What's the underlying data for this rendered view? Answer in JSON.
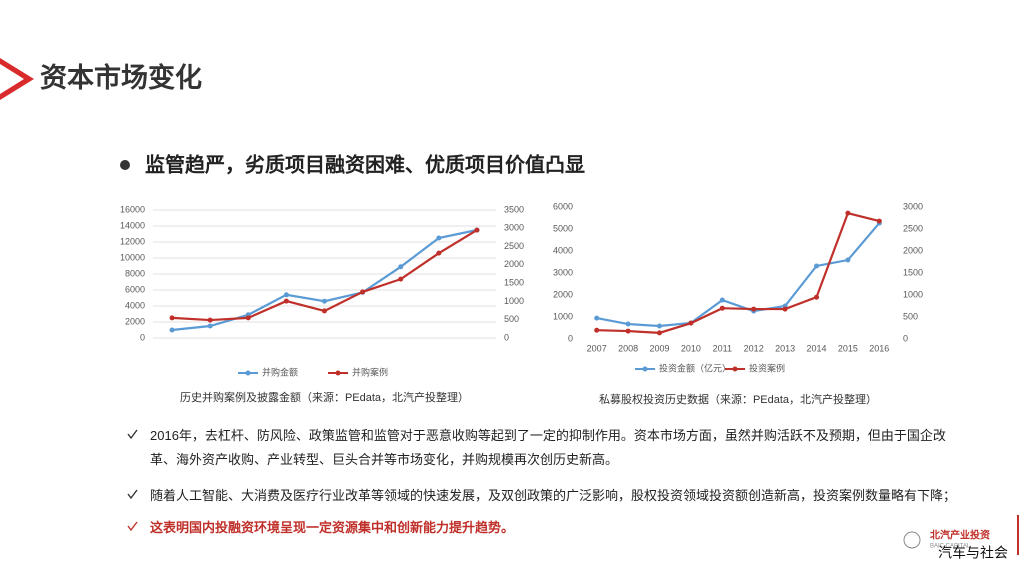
{
  "title": "资本市场变化",
  "heading": "监管趋严，劣质项目融资困难、优质项目价值凸显",
  "chart_data": [
    {
      "type": "line",
      "caption": "历史并购案例及披露金额（来源：PEdata，北汽产投整理）",
      "categories": [
        null,
        null,
        null,
        null,
        null,
        null,
        null,
        null,
        null
      ],
      "series": [
        {
          "name": "并购金额",
          "color": "#5b9bd5",
          "values": [
            1000,
            1500,
            2900,
            5400,
            4600,
            5700,
            8900,
            12500,
            13500
          ]
        },
        {
          "name": "并购案例",
          "color": "#c0302a",
          "axis": "y2",
          "values": [
            550,
            490,
            550,
            1010,
            740,
            1260,
            1610,
            2320,
            2950
          ]
        }
      ],
      "ylim": [
        0,
        16000
      ],
      "yticks": [
        0,
        2000,
        4000,
        6000,
        8000,
        10000,
        12000,
        14000,
        16000
      ],
      "y2lim": [
        0,
        3500
      ],
      "y2ticks": [
        0,
        500,
        1000,
        1500,
        2000,
        2500,
        3000,
        3500
      ],
      "grid": true,
      "legend": "bottom"
    },
    {
      "type": "line",
      "caption": "私募股权投资历史数据（来源：PEdata，北汽产投整理）",
      "categories": [
        "2007",
        "2008",
        "2009",
        "2010",
        "2011",
        "2012",
        "2013",
        "2014",
        "2015",
        "2016"
      ],
      "series": [
        {
          "name": "投资金额（亿元）",
          "color": "#5b9bd5",
          "values": [
            950,
            680,
            590,
            730,
            1770,
            1270,
            1500,
            3320,
            3590,
            5270
          ]
        },
        {
          "name": "投资案例",
          "color": "#c0302a",
          "axis": "y2",
          "values": [
            200,
            180,
            140,
            360,
            700,
            680,
            680,
            950,
            2860,
            2680
          ]
        }
      ],
      "ylim": [
        0,
        6000
      ],
      "yticks": [
        0,
        1000,
        2000,
        3000,
        4000,
        5000,
        6000
      ],
      "y2lim": [
        0,
        3000
      ],
      "y2ticks": [
        0,
        500,
        1000,
        1500,
        2000,
        2500,
        3000
      ],
      "grid": false,
      "legend": "bottom"
    }
  ],
  "points": [
    "2016年，去杠杆、防风险、政策监管和监管对于恶意收购等起到了一定的抑制作用。资本市场方面，虽然并购活跃不及预期，但由于国企改革、海外资产收购、产业转型、巨头合并等市场变化，并购规模再次创历史新高。",
    "随着人工智能、大消费及医疗行业改革等领域的快速发展，及双创政策的广泛影响，股权投资领域投资额创造新高，投资案例数量略有下降；",
    "这表明国内投融资环境呈现一定资源集中和创新能力提升趋势。"
  ],
  "logo": {
    "name": "北汽产业投资",
    "sub": "BAIC CAPITAL"
  },
  "watermark": "汽车与社会"
}
